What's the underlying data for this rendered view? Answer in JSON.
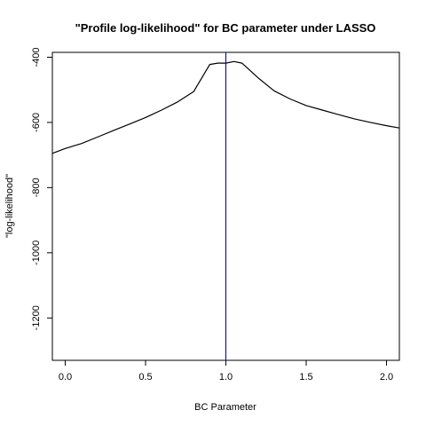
{
  "chart_data": {
    "type": "line",
    "title": "\"Profile log-likelihood\" for BC parameter under LASSO",
    "xlabel": "BC Parameter",
    "ylabel": "\"log-likelihood\"",
    "xlim": [
      -0.08,
      2.08
    ],
    "ylim": [
      -1330,
      -385
    ],
    "x_ticks": [
      0.0,
      0.5,
      1.0,
      1.5,
      2.0
    ],
    "x_tick_labels": [
      "0.0",
      "0.5",
      "1.0",
      "1.5",
      "2.0"
    ],
    "y_ticks": [
      -1200,
      -1000,
      -800,
      -600,
      -400
    ],
    "y_tick_labels": [
      "-1200",
      "-1000",
      "-800",
      "-600",
      "-400"
    ],
    "grid": false,
    "series": [
      {
        "color": "#000000",
        "x": [
          -0.08,
          0.0,
          0.1,
          0.2,
          0.3,
          0.4,
          0.5,
          0.6,
          0.7,
          0.8,
          0.9,
          0.95,
          1.0,
          1.05,
          1.1,
          1.2,
          1.3,
          1.4,
          1.5,
          1.6,
          1.7,
          1.8,
          1.9,
          2.0,
          2.08
        ],
        "y": [
          -695,
          -680,
          -665,
          -645,
          -625,
          -605,
          -585,
          -562,
          -537,
          -505,
          -422,
          -418,
          -418,
          -413,
          -418,
          -463,
          -503,
          -528,
          -548,
          -562,
          -576,
          -589,
          -600,
          -610,
          -617
        ]
      }
    ],
    "vlines": [
      {
        "x": 1.0,
        "color": "#00008b"
      }
    ]
  }
}
